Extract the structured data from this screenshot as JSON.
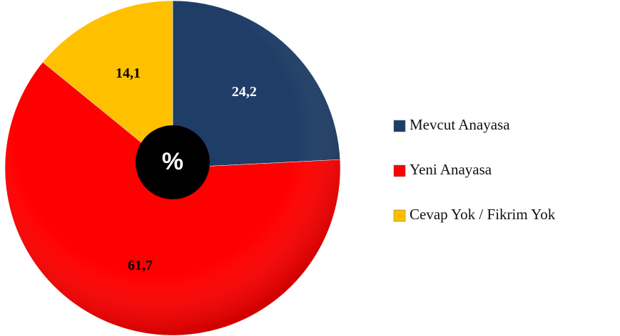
{
  "chart_data": {
    "type": "pie",
    "categories": [
      "Mevcut Anayasa",
      "Yeni Anayasa",
      "Cevap Yok / Fikrim Yok"
    ],
    "values": [
      24.2,
      61.7,
      14.1
    ],
    "value_labels": [
      "24,2",
      "61,7",
      "14,1"
    ],
    "colors": [
      "#1f3d66",
      "#ff0000",
      "#ffc000"
    ],
    "label_colors": [
      "#ffffff",
      "#000000",
      "#000000"
    ],
    "annotation": "%",
    "legend": "right"
  }
}
